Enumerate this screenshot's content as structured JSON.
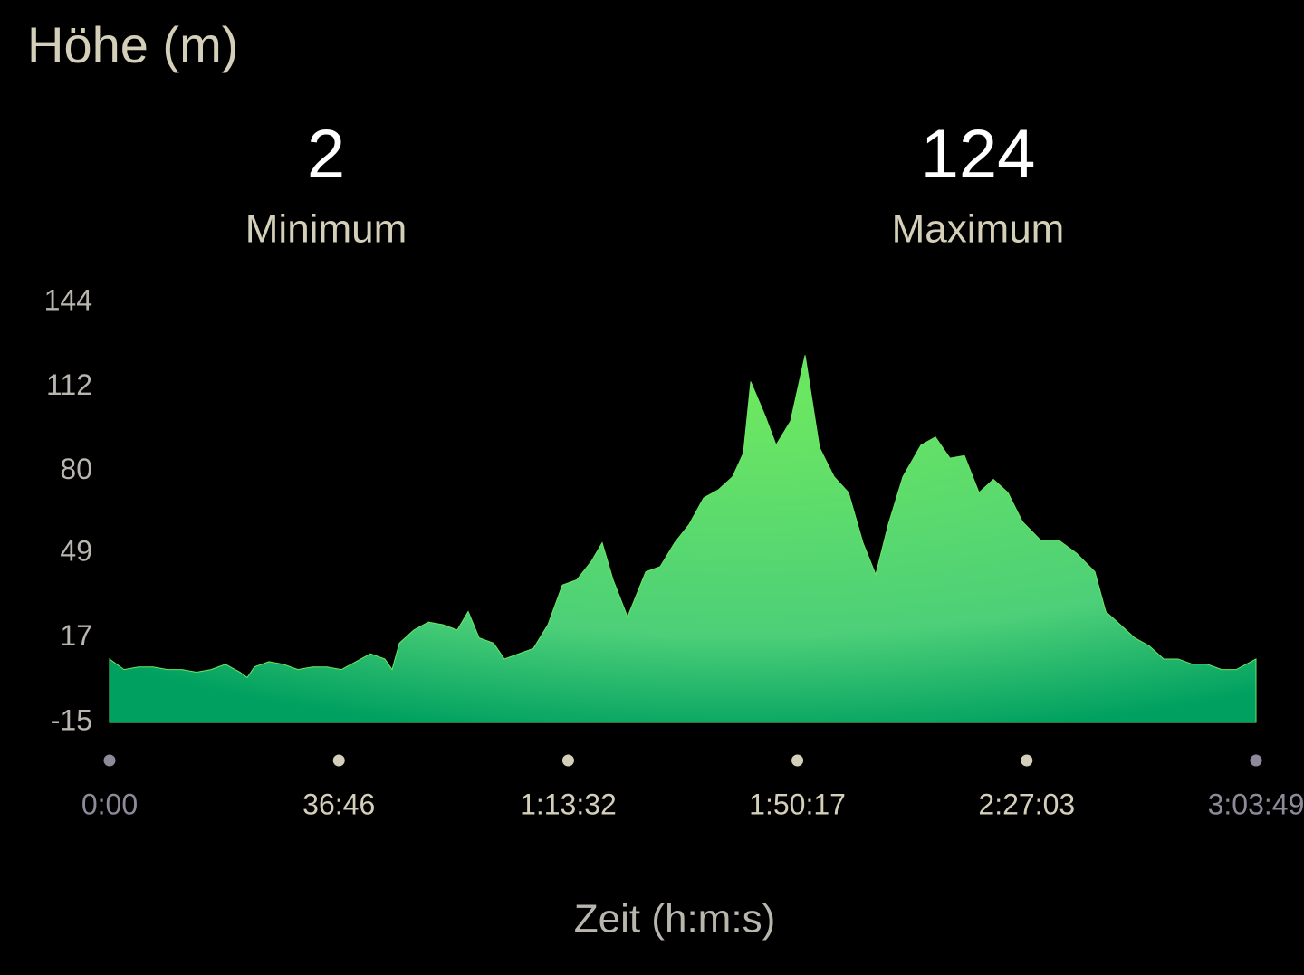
{
  "chart_data": {
    "type": "area",
    "title": "Höhe (m)",
    "stats": [
      {
        "value": 2,
        "label": "Minimum"
      },
      {
        "value": 124,
        "label": "Maximum"
      }
    ],
    "x_label": "Zeit (h:m:s)",
    "color": "#6ee860",
    "x": [
      0,
      139,
      279,
      418,
      558,
      697,
      836,
      976,
      1115,
      1255,
      1324,
      1394,
      1533,
      1673,
      1812,
      1951,
      2091,
      2230,
      2370,
      2509,
      2648,
      2718,
      2788,
      2927,
      3067,
      3206,
      3345,
      3450,
      3555,
      3694,
      3798,
      3938,
      4077,
      4217,
      4356,
      4495,
      4635,
      4739,
      4844,
      4983,
      5158,
      5297,
      5436,
      5576,
      5715,
      5854,
      5994,
      6098,
      6168,
      6307,
      6412,
      6551,
      6691,
      6830,
      6970,
      7109,
      7248,
      7370,
      7492,
      7632,
      7806,
      7945,
      8085,
      8224,
      8364,
      8503,
      8642,
      8782,
      8956,
      9130,
      9304,
      9479,
      9583,
      9723,
      9862,
      10001,
      10141,
      10280,
      10420,
      10559,
      10698,
      10838,
      11029
    ],
    "values": [
      9,
      5,
      6,
      6,
      5,
      5,
      4,
      5,
      7,
      4,
      2,
      6,
      8,
      7,
      5,
      6,
      6,
      5,
      8,
      11,
      9,
      5,
      15,
      20,
      23,
      22,
      20,
      27,
      17,
      15,
      9,
      11,
      13,
      22,
      37,
      39,
      46,
      53,
      39,
      25,
      42,
      44,
      53,
      60,
      70,
      73,
      78,
      87,
      114,
      101,
      90,
      99,
      124,
      89,
      78,
      72,
      53,
      41,
      60,
      78,
      90,
      93,
      85,
      86,
      72,
      77,
      72,
      61,
      54,
      54,
      49,
      42,
      27,
      22,
      17,
      14,
      9,
      9,
      7,
      7,
      5,
      5,
      9
    ],
    "xlim": [
      0,
      11029
    ],
    "xticks": [
      {
        "value": 0,
        "label": "0:00"
      },
      {
        "value": 2206,
        "label": "36:46"
      },
      {
        "value": 4412,
        "label": "1:13:32"
      },
      {
        "value": 6617,
        "label": "1:50:17"
      },
      {
        "value": 8823,
        "label": "2:27:03"
      },
      {
        "value": 11029,
        "label": "3:03:49"
      }
    ],
    "ylim": [
      -15,
      144
    ],
    "yticks": [
      -15,
      17,
      49,
      80,
      112,
      144
    ]
  }
}
